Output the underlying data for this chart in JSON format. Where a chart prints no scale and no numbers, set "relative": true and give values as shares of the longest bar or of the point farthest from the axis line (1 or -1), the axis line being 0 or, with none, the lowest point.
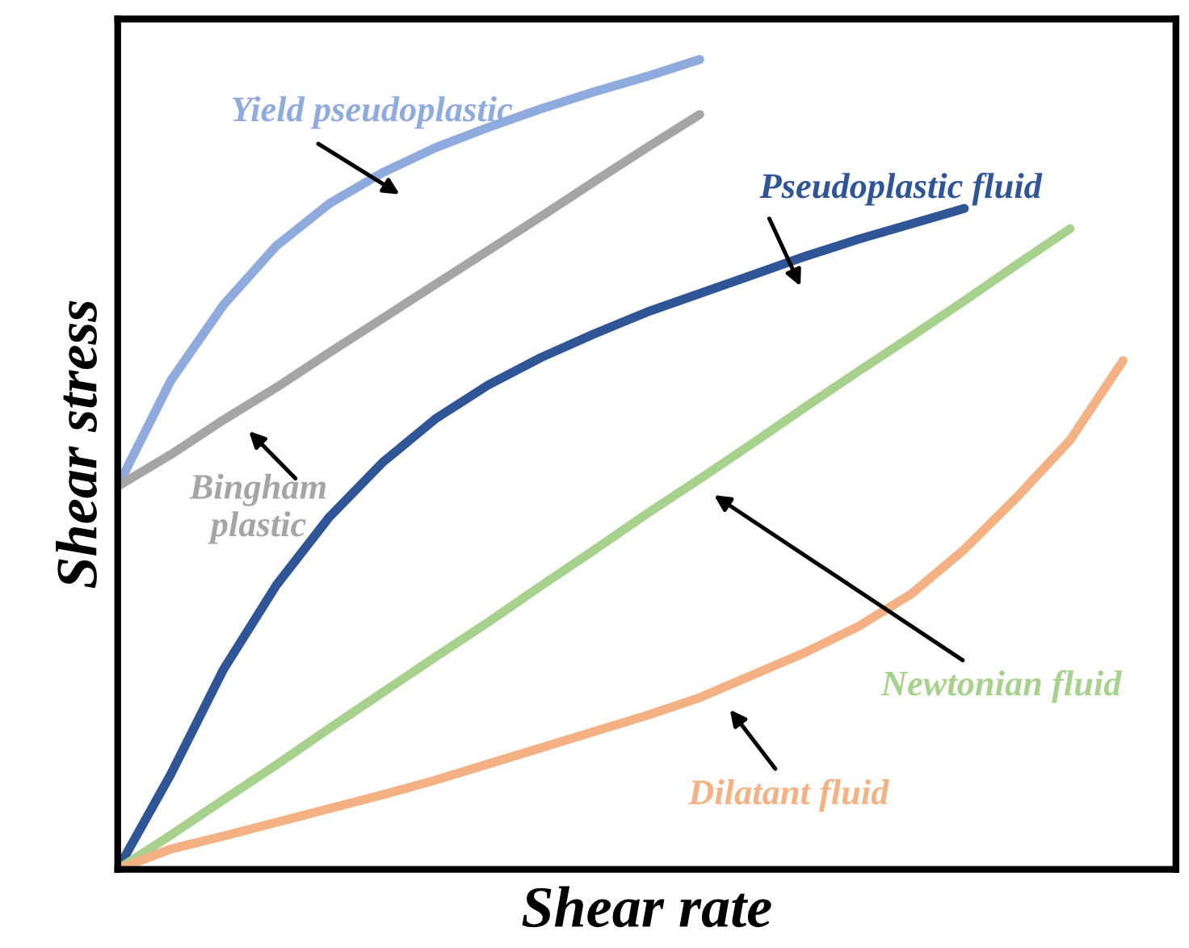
{
  "chart_data": {
    "type": "line",
    "relative": true,
    "xlabel": "Shear rate",
    "ylabel": "Shear stress",
    "categories": [
      null,
      null,
      null,
      null,
      null,
      null,
      null,
      null,
      null,
      null,
      null,
      null,
      null,
      null,
      null,
      null,
      null,
      null,
      null,
      null,
      null
    ],
    "grid": false,
    "legend": false,
    "marker": "none",
    "line_style": "solid",
    "series": [
      {
        "name": "Yield pseudoplastic",
        "color": "#8faadc",
        "values": [
          0.473,
          0.603,
          0.697,
          0.77,
          0.822,
          0.86,
          0.891,
          0.916,
          0.939,
          0.96,
          0.979,
          1.0,
          null,
          null,
          null,
          null,
          null,
          null,
          null,
          null,
          null
        ]
      },
      {
        "name": "Bingham\nplastic",
        "color": "#a5a5a5",
        "values": [
          0.473,
          0.512,
          0.555,
          0.595,
          0.638,
          0.68,
          0.722,
          0.764,
          0.806,
          0.849,
          0.891,
          0.932,
          null,
          null,
          null,
          null,
          null,
          null,
          null,
          null,
          null
        ]
      },
      {
        "name": "Pseudoplastic fluid",
        "color": "#2f5597",
        "values": [
          0.0,
          0.117,
          0.247,
          0.351,
          0.435,
          0.502,
          0.556,
          0.598,
          0.632,
          0.661,
          0.688,
          0.711,
          0.734,
          0.757,
          0.778,
          0.797,
          0.816,
          null,
          null,
          null,
          null
        ]
      },
      {
        "name": "Newtonian fluid",
        "color": "#a9d18e",
        "values": [
          0.0,
          0.042,
          0.086,
          0.129,
          0.174,
          0.218,
          0.262,
          0.305,
          0.35,
          0.394,
          0.439,
          0.482,
          0.526,
          0.571,
          0.615,
          0.658,
          0.702,
          0.747,
          0.791,
          null,
          null
        ]
      },
      {
        "name": "Dilatant fluid",
        "color": "#f4b183",
        "values": [
          0.0,
          0.025,
          0.041,
          0.058,
          0.075,
          0.092,
          0.11,
          0.13,
          0.15,
          0.17,
          0.19,
          0.212,
          0.24,
          0.268,
          0.3,
          0.34,
          0.395,
          0.46,
          0.53,
          0.628,
          null
        ]
      }
    ]
  }
}
